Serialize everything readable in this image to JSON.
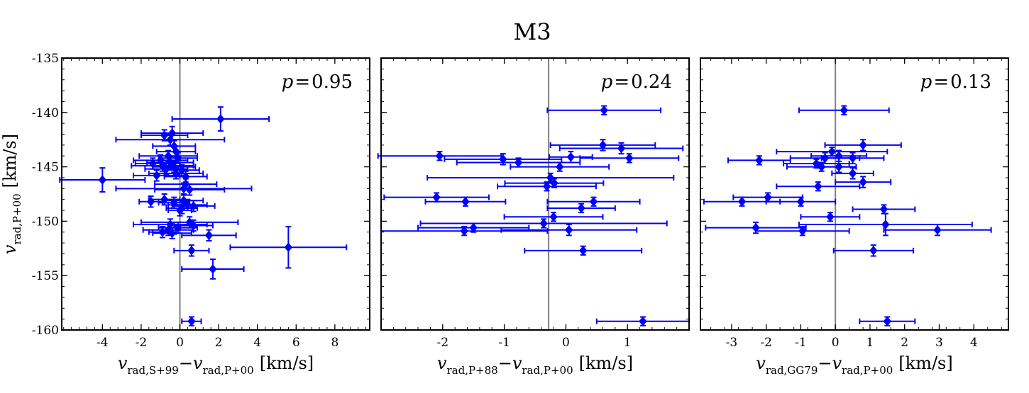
{
  "figure": {
    "title": "M3"
  },
  "colors": {
    "marker": "#0000ff",
    "refline": "#808080",
    "frame": "#000000"
  },
  "chart_data": [
    {
      "type": "scatter",
      "panel": "left",
      "annotation": {
        "var": "p",
        "value": "0.95"
      },
      "xlabel": {
        "v": "v",
        "sub1": "rad,S+99",
        "minus": "−",
        "v2": "v",
        "sub2": "rad,P+00",
        "unit": "[km/s]"
      },
      "ylabel": {
        "v": "v",
        "sub": "rad,P+00",
        "unit": "[km/s]"
      },
      "xlim": [
        -6.1,
        9.8
      ],
      "ylim": [
        -160,
        -135
      ],
      "xticks": [
        -4,
        -2,
        0,
        2,
        4,
        6,
        8
      ],
      "xticklabels": [
        "-4",
        "-2",
        "0",
        "2",
        "4",
        "6",
        "8"
      ],
      "yticks": [
        -160,
        -155,
        -150,
        -145,
        -140,
        -135
      ],
      "yticklabels": [
        "-160",
        "-155",
        "-150",
        "-145",
        "-140",
        "-135"
      ],
      "vline": 0,
      "points": [
        {
          "x": 2.1,
          "y": -140.6,
          "xerr": 2.5,
          "yerr": 1.1
        },
        {
          "x": -0.4,
          "y": -141.9,
          "xerr": 1.6,
          "yerr": 0.6
        },
        {
          "x": -0.8,
          "y": -142.1,
          "xerr": 1.2,
          "yerr": 0.5
        },
        {
          "x": -0.5,
          "y": -142.5,
          "xerr": 2.8,
          "yerr": 0.5
        },
        {
          "x": -0.3,
          "y": -143.1,
          "xerr": 1.1,
          "yerr": 0.5
        },
        {
          "x": -0.2,
          "y": -143.6,
          "xerr": 1.0,
          "yerr": 0.5
        },
        {
          "x": -0.6,
          "y": -144.0,
          "xerr": 1.5,
          "yerr": 0.5
        },
        {
          "x": -0.1,
          "y": -144.2,
          "xerr": 1.0,
          "yerr": 0.5
        },
        {
          "x": -1.0,
          "y": -144.4,
          "xerr": 1.4,
          "yerr": 0.5
        },
        {
          "x": -0.5,
          "y": -144.6,
          "xerr": 1.2,
          "yerr": 0.5
        },
        {
          "x": -1.4,
          "y": -144.7,
          "xerr": 0.9,
          "yerr": 0.5
        },
        {
          "x": -0.9,
          "y": -144.9,
          "xerr": 1.6,
          "yerr": 0.5
        },
        {
          "x": -0.3,
          "y": -145.0,
          "xerr": 1.1,
          "yerr": 0.5
        },
        {
          "x": -0.7,
          "y": -145.2,
          "xerr": 1.1,
          "yerr": 0.5
        },
        {
          "x": 0.1,
          "y": -145.3,
          "xerr": 0.9,
          "yerr": 0.5
        },
        {
          "x": -0.2,
          "y": -145.6,
          "xerr": 1.4,
          "yerr": 0.5
        },
        {
          "x": -1.2,
          "y": -145.8,
          "xerr": 1.2,
          "yerr": 0.5
        },
        {
          "x": 0.3,
          "y": -145.9,
          "xerr": 1.1,
          "yerr": 0.5
        },
        {
          "x": -4.0,
          "y": -146.2,
          "xerr": 2.2,
          "yerr": 1.1
        },
        {
          "x": 0.3,
          "y": -146.6,
          "xerr": 1.6,
          "yerr": 0.5
        },
        {
          "x": 0.2,
          "y": -147.0,
          "xerr": 3.5,
          "yerr": 0.5
        },
        {
          "x": 0.5,
          "y": -147.1,
          "xerr": 1.8,
          "yerr": 0.5
        },
        {
          "x": -0.8,
          "y": -148.0,
          "xerr": 0.8,
          "yerr": 0.5
        },
        {
          "x": 0.2,
          "y": -148.1,
          "xerr": 1.0,
          "yerr": 0.5
        },
        {
          "x": -1.5,
          "y": -148.2,
          "xerr": 0.6,
          "yerr": 0.5
        },
        {
          "x": -0.3,
          "y": -148.3,
          "xerr": 0.8,
          "yerr": 0.5
        },
        {
          "x": 0.4,
          "y": -148.5,
          "xerr": 1.0,
          "yerr": 0.5
        },
        {
          "x": 0.7,
          "y": -148.6,
          "xerr": 1.1,
          "yerr": 0.5
        },
        {
          "x": 0.1,
          "y": -148.8,
          "xerr": 0.8,
          "yerr": 0.5
        },
        {
          "x": 0.0,
          "y": -149.0,
          "xerr": 0.6,
          "yerr": 0.5
        },
        {
          "x": 0.5,
          "y": -150.1,
          "xerr": 2.5,
          "yerr": 0.5
        },
        {
          "x": -0.5,
          "y": -150.3,
          "xerr": 1.9,
          "yerr": 0.5
        },
        {
          "x": 0.7,
          "y": -150.4,
          "xerr": 1.0,
          "yerr": 0.5
        },
        {
          "x": -0.1,
          "y": -150.6,
          "xerr": 1.0,
          "yerr": 0.5
        },
        {
          "x": -0.6,
          "y": -150.8,
          "xerr": 1.3,
          "yerr": 0.5
        },
        {
          "x": -0.9,
          "y": -151.0,
          "xerr": 0.7,
          "yerr": 0.5
        },
        {
          "x": -0.4,
          "y": -151.1,
          "xerr": 1.0,
          "yerr": 0.5
        },
        {
          "x": 1.5,
          "y": -151.3,
          "xerr": 1.4,
          "yerr": 0.5
        },
        {
          "x": 5.6,
          "y": -152.4,
          "xerr": 3.0,
          "yerr": 1.9
        },
        {
          "x": 0.6,
          "y": -152.7,
          "xerr": 0.9,
          "yerr": 0.5
        },
        {
          "x": 1.7,
          "y": -154.4,
          "xerr": 1.6,
          "yerr": 0.9
        },
        {
          "x": 0.6,
          "y": -159.2,
          "xerr": 0.5,
          "yerr": 0.4
        }
      ]
    },
    {
      "type": "scatter",
      "panel": "middle",
      "annotation": {
        "var": "p",
        "value": "0.24"
      },
      "xlabel": {
        "v": "v",
        "sub1": "rad,P+88",
        "minus": "−",
        "v2": "v",
        "sub2": "rad,P+00",
        "unit": "[km/s]"
      },
      "xlim": [
        -3.0,
        2.0
      ],
      "ylim": [
        -160,
        -135
      ],
      "xticks": [
        -2,
        -1,
        0,
        1
      ],
      "xticklabels": [
        "-2",
        "-1",
        "0",
        "1"
      ],
      "yticks": [
        -160,
        -155,
        -150,
        -145,
        -140,
        -135
      ],
      "vline": -0.28,
      "points": [
        {
          "x": 0.62,
          "y": -139.8,
          "xerr": 0.92,
          "yerr": 0.4
        },
        {
          "x": -2.05,
          "y": -144.0,
          "xerr": 1.0,
          "yerr": 0.4
        },
        {
          "x": 0.6,
          "y": -143.0,
          "xerr": 0.85,
          "yerr": 0.5
        },
        {
          "x": 0.9,
          "y": -143.3,
          "xerr": 1.0,
          "yerr": 0.5
        },
        {
          "x": -1.02,
          "y": -144.3,
          "xerr": 0.95,
          "yerr": 0.5
        },
        {
          "x": 0.08,
          "y": -144.1,
          "xerr": 0.35,
          "yerr": 0.5
        },
        {
          "x": 1.03,
          "y": -144.2,
          "xerr": 0.8,
          "yerr": 0.4
        },
        {
          "x": -0.77,
          "y": -144.6,
          "xerr": 1.0,
          "yerr": 0.4
        },
        {
          "x": -0.1,
          "y": -145.0,
          "xerr": 0.8,
          "yerr": 0.4
        },
        {
          "x": -0.25,
          "y": -146.0,
          "xerr": 2.0,
          "yerr": 0.4
        },
        {
          "x": -0.19,
          "y": -146.5,
          "xerr": 0.8,
          "yerr": 0.4
        },
        {
          "x": -0.31,
          "y": -146.8,
          "xerr": 0.8,
          "yerr": 0.4
        },
        {
          "x": -2.1,
          "y": -147.8,
          "xerr": 0.85,
          "yerr": 0.4
        },
        {
          "x": -1.63,
          "y": -148.2,
          "xerr": 0.65,
          "yerr": 0.4
        },
        {
          "x": 0.45,
          "y": -148.2,
          "xerr": 0.75,
          "yerr": 0.4
        },
        {
          "x": 0.25,
          "y": -148.8,
          "xerr": 0.55,
          "yerr": 0.4
        },
        {
          "x": -0.2,
          "y": -149.6,
          "xerr": 0.8,
          "yerr": 0.4
        },
        {
          "x": -0.36,
          "y": -150.2,
          "xerr": 2.0,
          "yerr": 0.4
        },
        {
          "x": -1.5,
          "y": -150.6,
          "xerr": 0.9,
          "yerr": 0.4
        },
        {
          "x": -1.65,
          "y": -150.9,
          "xerr": 1.35,
          "yerr": 0.4
        },
        {
          "x": 0.05,
          "y": -150.8,
          "xerr": 1.1,
          "yerr": 0.5
        },
        {
          "x": 0.28,
          "y": -152.7,
          "xerr": 0.95,
          "yerr": 0.4
        },
        {
          "x": 1.25,
          "y": -159.2,
          "xerr": 0.75,
          "yerr": 0.4
        }
      ]
    },
    {
      "type": "scatter",
      "panel": "right",
      "annotation": {
        "var": "p",
        "value": "0.13"
      },
      "xlabel": {
        "v": "v",
        "sub1": "rad,GG79",
        "minus": "−",
        "v2": "v",
        "sub2": "rad,P+00",
        "unit": "[km/s]"
      },
      "xlim": [
        -3.9,
        5.0
      ],
      "ylim": [
        -160,
        -135
      ],
      "xticks": [
        -3,
        -2,
        -1,
        0,
        1,
        2,
        3,
        4
      ],
      "xticklabels": [
        "-3",
        "-2",
        "-1",
        "0",
        "1",
        "2",
        "3",
        "4"
      ],
      "yticks": [
        -160,
        -155,
        -150,
        -145,
        -140,
        -135
      ],
      "vline": 0,
      "points": [
        {
          "x": 0.25,
          "y": -139.8,
          "xerr": 1.3,
          "yerr": 0.4
        },
        {
          "x": 0.8,
          "y": -143.0,
          "xerr": 1.1,
          "yerr": 0.5
        },
        {
          "x": -0.1,
          "y": -143.6,
          "xerr": 1.6,
          "yerr": 0.4
        },
        {
          "x": 0.1,
          "y": -144.0,
          "xerr": 0.8,
          "yerr": 0.5
        },
        {
          "x": -0.3,
          "y": -144.2,
          "xerr": 1.0,
          "yerr": 0.5
        },
        {
          "x": 0.5,
          "y": -144.2,
          "xerr": 0.9,
          "yerr": 0.5
        },
        {
          "x": -2.2,
          "y": -144.4,
          "xerr": 0.9,
          "yerr": 0.4
        },
        {
          "x": -0.55,
          "y": -144.7,
          "xerr": 0.95,
          "yerr": 0.4
        },
        {
          "x": -0.4,
          "y": -145.0,
          "xerr": 1.0,
          "yerr": 0.4
        },
        {
          "x": 0.1,
          "y": -145.0,
          "xerr": 0.5,
          "yerr": 0.5
        },
        {
          "x": 0.5,
          "y": -145.6,
          "xerr": 0.6,
          "yerr": 0.5
        },
        {
          "x": -0.5,
          "y": -146.8,
          "xerr": 1.2,
          "yerr": 0.4
        },
        {
          "x": 0.8,
          "y": -146.4,
          "xerr": 0.8,
          "yerr": 0.5
        },
        {
          "x": -1.95,
          "y": -147.8,
          "xerr": 1.0,
          "yerr": 0.4
        },
        {
          "x": -2.7,
          "y": -148.2,
          "xerr": 1.1,
          "yerr": 0.4
        },
        {
          "x": -1.0,
          "y": -148.2,
          "xerr": 1.0,
          "yerr": 0.4
        },
        {
          "x": 1.4,
          "y": -148.9,
          "xerr": 0.9,
          "yerr": 0.4
        },
        {
          "x": -0.15,
          "y": -149.6,
          "xerr": 0.85,
          "yerr": 0.4
        },
        {
          "x": 1.45,
          "y": -150.3,
          "xerr": 2.5,
          "yerr": 1.0
        },
        {
          "x": -2.3,
          "y": -150.6,
          "xerr": 1.45,
          "yerr": 0.5
        },
        {
          "x": -0.95,
          "y": -150.9,
          "xerr": 1.35,
          "yerr": 0.4
        },
        {
          "x": 2.95,
          "y": -150.8,
          "xerr": 1.55,
          "yerr": 0.5
        },
        {
          "x": 1.1,
          "y": -152.7,
          "xerr": 1.15,
          "yerr": 0.5
        },
        {
          "x": 1.5,
          "y": -159.2,
          "xerr": 0.8,
          "yerr": 0.4
        }
      ]
    }
  ]
}
